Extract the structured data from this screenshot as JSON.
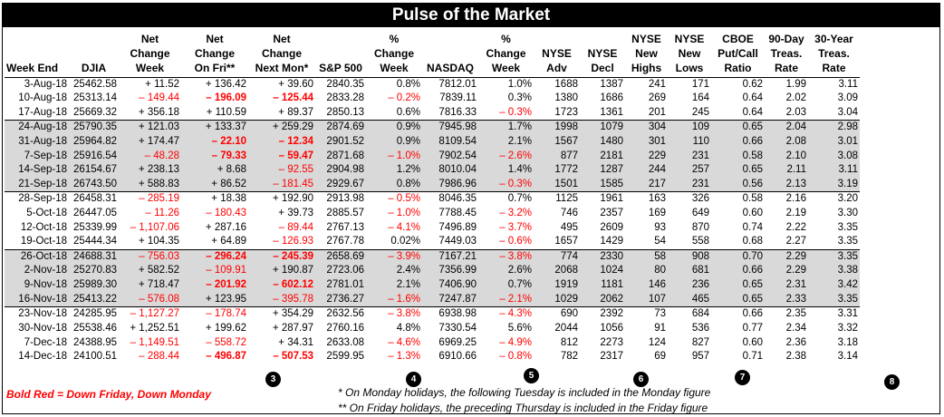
{
  "title": "Pulse of the Market",
  "headers": [
    "Week End",
    "DJIA",
    "Net\nChange\nWeek",
    "Net\nChange\nOn Fri**",
    "Net\nChange\nNext Mon*",
    "S&P 500",
    "%\nChange\nWeek",
    "NASDAQ",
    "%\nChange\nWeek",
    "NYSE\nAdv",
    "NYSE\nDecl",
    "NYSE\nNew\nHighs",
    "NYSE\nNew\nLows",
    "CBOE\nPut/Call\nRatio",
    "90-Day\nTreas.\nRate",
    "30-Year\nTreas.\nRate"
  ],
  "rows": [
    {
      "cells": [
        "3-Aug-18",
        "25462.58",
        "+ 11.52",
        "+ 136.42",
        "+ 39.60",
        "2840.35",
        "0.8%",
        "7812.01",
        "1.0%",
        "1688",
        "1387",
        "241",
        "171",
        "0.62",
        "1.99",
        "3.11"
      ],
      "red": [],
      "bold": [],
      "shaded": false
    },
    {
      "cells": [
        "10-Aug-18",
        "25313.14",
        "– 149.44",
        "– 196.09",
        "– 125.44",
        "2833.28",
        "– 0.2%",
        "7839.11",
        "0.3%",
        "1380",
        "1686",
        "269",
        "164",
        "0.64",
        "2.02",
        "3.09"
      ],
      "red": [
        2,
        3,
        4,
        6
      ],
      "bold": [
        3,
        4
      ],
      "shaded": false
    },
    {
      "cells": [
        "17-Aug-18",
        "25669.32",
        "+ 356.18",
        "+ 110.59",
        "+ 89.37",
        "2850.13",
        "0.6%",
        "7816.33",
        "– 0.3%",
        "1723",
        "1361",
        "201",
        "245",
        "0.64",
        "2.03",
        "3.04"
      ],
      "red": [
        8
      ],
      "bold": [],
      "shaded": false
    },
    {
      "cells": [
        "24-Aug-18",
        "25790.35",
        "+ 121.03",
        "+ 133.37",
        "+ 259.29",
        "2874.69",
        "0.9%",
        "7945.98",
        "1.7%",
        "1998",
        "1079",
        "304",
        "109",
        "0.65",
        "2.04",
        "2.98"
      ],
      "red": [],
      "bold": [],
      "shaded": true
    },
    {
      "cells": [
        "31-Aug-18",
        "25964.82",
        "+ 174.47",
        "– 22.10",
        "– 12.34",
        "2901.52",
        "0.9%",
        "8109.54",
        "2.1%",
        "1567",
        "1480",
        "301",
        "110",
        "0.66",
        "2.08",
        "3.01"
      ],
      "red": [
        3,
        4
      ],
      "bold": [
        3,
        4
      ],
      "shaded": true
    },
    {
      "cells": [
        "7-Sep-18",
        "25916.54",
        "– 48.28",
        "– 79.33",
        "– 59.47",
        "2871.68",
        "– 1.0%",
        "7902.54",
        "– 2.6%",
        "877",
        "2181",
        "229",
        "231",
        "0.58",
        "2.10",
        "3.08"
      ],
      "red": [
        2,
        3,
        4,
        6,
        8
      ],
      "bold": [
        3,
        4
      ],
      "shaded": true
    },
    {
      "cells": [
        "14-Sep-18",
        "26154.67",
        "+ 238.13",
        "+ 8.68",
        "– 92.55",
        "2904.98",
        "1.2%",
        "8010.04",
        "1.4%",
        "1772",
        "1287",
        "244",
        "257",
        "0.65",
        "2.11",
        "3.11"
      ],
      "red": [
        4
      ],
      "bold": [],
      "shaded": true
    },
    {
      "cells": [
        "21-Sep-18",
        "26743.50",
        "+ 588.83",
        "+ 86.52",
        "– 181.45",
        "2929.67",
        "0.8%",
        "7986.96",
        "– 0.3%",
        "1501",
        "1585",
        "217",
        "231",
        "0.56",
        "2.13",
        "3.19"
      ],
      "red": [
        4,
        8
      ],
      "bold": [],
      "shaded": true
    },
    {
      "cells": [
        "28-Sep-18",
        "26458.31",
        "– 285.19",
        "+ 18.38",
        "+ 192.90",
        "2913.98",
        "– 0.5%",
        "8046.35",
        "0.7%",
        "1125",
        "1961",
        "163",
        "326",
        "0.58",
        "2.16",
        "3.20"
      ],
      "red": [
        2,
        6
      ],
      "bold": [],
      "shaded": false
    },
    {
      "cells": [
        "5-Oct-18",
        "26447.05",
        "– 11.26",
        "– 180.43",
        "+ 39.73",
        "2885.57",
        "– 1.0%",
        "7788.45",
        "– 3.2%",
        "746",
        "2357",
        "169",
        "649",
        "0.60",
        "2.19",
        "3.30"
      ],
      "red": [
        2,
        3,
        6,
        8
      ],
      "bold": [],
      "shaded": false
    },
    {
      "cells": [
        "12-Oct-18",
        "25339.99",
        "– 1,107.06",
        "+ 287.16",
        "– 89.44",
        "2767.13",
        "– 4.1%",
        "7496.89",
        "– 3.7%",
        "495",
        "2609",
        "93",
        "870",
        "0.74",
        "2.22",
        "3.35"
      ],
      "red": [
        2,
        4,
        6,
        8
      ],
      "bold": [],
      "shaded": false
    },
    {
      "cells": [
        "19-Oct-18",
        "25444.34",
        "+ 104.35",
        "+ 64.89",
        "– 126.93",
        "2767.78",
        "0.02%",
        "7449.03",
        "– 0.6%",
        "1657",
        "1429",
        "54",
        "558",
        "0.68",
        "2.27",
        "3.35"
      ],
      "red": [
        4,
        8
      ],
      "bold": [],
      "shaded": false
    },
    {
      "cells": [
        "26-Oct-18",
        "24688.31",
        "– 756.03",
        "– 296.24",
        "– 245.39",
        "2658.69",
        "– 3.9%",
        "7167.21",
        "– 3.8%",
        "774",
        "2330",
        "58",
        "908",
        "0.70",
        "2.29",
        "3.35"
      ],
      "red": [
        2,
        3,
        4,
        6,
        8
      ],
      "bold": [
        3,
        4
      ],
      "shaded": true
    },
    {
      "cells": [
        "2-Nov-18",
        "25270.83",
        "+ 582.52",
        "– 109.91",
        "+ 190.87",
        "2723.06",
        "2.4%",
        "7356.99",
        "2.6%",
        "2068",
        "1024",
        "80",
        "681",
        "0.66",
        "2.29",
        "3.38"
      ],
      "red": [
        3
      ],
      "bold": [],
      "shaded": true
    },
    {
      "cells": [
        "9-Nov-18",
        "25989.30",
        "+ 718.47",
        "– 201.92",
        "– 602.12",
        "2781.01",
        "2.1%",
        "7406.90",
        "0.7%",
        "1919",
        "1181",
        "146",
        "236",
        "0.65",
        "2.31",
        "3.42"
      ],
      "red": [
        3,
        4
      ],
      "bold": [
        3,
        4
      ],
      "shaded": true
    },
    {
      "cells": [
        "16-Nov-18",
        "25413.22",
        "– 576.08",
        "+ 123.95",
        "– 395.78",
        "2736.27",
        "– 1.6%",
        "7247.87",
        "– 2.1%",
        "1029",
        "2062",
        "107",
        "465",
        "0.65",
        "2.33",
        "3.35"
      ],
      "red": [
        2,
        4,
        6,
        8
      ],
      "bold": [],
      "shaded": true
    },
    {
      "cells": [
        "23-Nov-18",
        "24285.95",
        "– 1,127.27",
        "– 178.74",
        "+ 354.29",
        "2632.56",
        "– 3.8%",
        "6938.98",
        "– 4.3%",
        "690",
        "2392",
        "73",
        "684",
        "0.66",
        "2.35",
        "3.31"
      ],
      "red": [
        2,
        3,
        6,
        8
      ],
      "bold": [],
      "shaded": false
    },
    {
      "cells": [
        "30-Nov-18",
        "25538.46",
        "+ 1,252.51",
        "+ 199.62",
        "+ 287.97",
        "2760.16",
        "4.8%",
        "7330.54",
        "5.6%",
        "2044",
        "1056",
        "91",
        "536",
        "0.77",
        "2.34",
        "3.32"
      ],
      "red": [],
      "bold": [],
      "shaded": false
    },
    {
      "cells": [
        "7-Dec-18",
        "24388.95",
        "– 1,149.51",
        "– 558.72",
        "+ 34.31",
        "2633.08",
        "– 4.6%",
        "6969.25",
        "– 4.9%",
        "812",
        "2273",
        "124",
        "827",
        "0.60",
        "2.36",
        "3.18"
      ],
      "red": [
        2,
        3,
        6,
        8
      ],
      "bold": [],
      "shaded": false
    },
    {
      "cells": [
        "14-Dec-18",
        "24100.51",
        "– 288.44",
        "– 496.87",
        "– 507.53",
        "2599.95",
        "– 1.3%",
        "6910.66",
        "– 0.8%",
        "782",
        "2317",
        "69",
        "957",
        "0.71",
        "2.38",
        "3.14"
      ],
      "red": [
        2,
        3,
        4,
        6,
        8
      ],
      "bold": [
        3,
        4
      ],
      "shaded": false
    }
  ],
  "markers": [
    "3",
    "4",
    "5",
    "6",
    "7",
    "8"
  ],
  "legend": "Bold Red = Down Friday, Down Monday",
  "footnote1": "* On Monday holidays, the following Tuesday is included in the Monday figure",
  "footnote2": "** On Friday holidays, the preceding Thursday is included in the Friday figure"
}
